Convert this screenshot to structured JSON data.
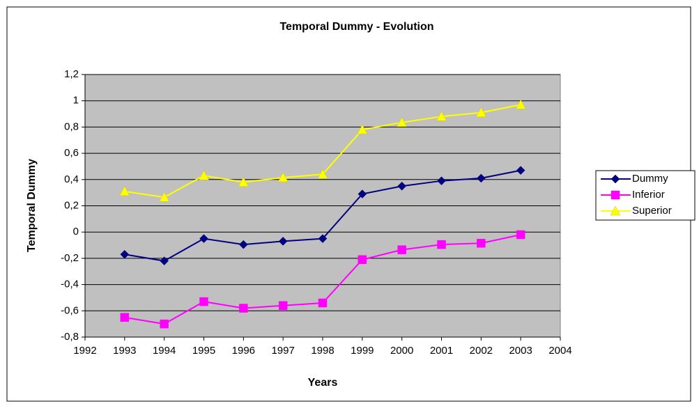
{
  "chart_data": {
    "type": "line",
    "title": "Temporal Dummy - Evolution",
    "xlabel": "Years",
    "ylabel": "Temporal Dummy",
    "x": [
      1993,
      1994,
      1995,
      1996,
      1997,
      1998,
      1999,
      2000,
      2001,
      2002,
      2003
    ],
    "series": [
      {
        "name": "Dummy",
        "color": "#000080",
        "marker": "diamond",
        "values": [
          -0.17,
          -0.22,
          -0.05,
          -0.095,
          -0.07,
          -0.05,
          0.29,
          0.35,
          0.39,
          0.41,
          0.47
        ]
      },
      {
        "name": "Inferior",
        "color": "#ff00ff",
        "marker": "square",
        "values": [
          -0.65,
          -0.7,
          -0.53,
          -0.58,
          -0.56,
          -0.54,
          -0.21,
          -0.135,
          -0.095,
          -0.085,
          -0.02
        ]
      },
      {
        "name": "Superior",
        "color": "#ffff00",
        "marker": "triangle",
        "values": [
          0.31,
          0.265,
          0.43,
          0.38,
          0.415,
          0.44,
          0.78,
          0.835,
          0.88,
          0.91,
          0.97
        ]
      }
    ],
    "xlim": [
      1992,
      2004
    ],
    "xticks": [
      1992,
      1993,
      1994,
      1995,
      1996,
      1997,
      1998,
      1999,
      2000,
      2001,
      2002,
      2003,
      2004
    ],
    "ylim": [
      -0.8,
      1.2
    ],
    "yticks": [
      {
        "value": -0.8,
        "label": "-0,8"
      },
      {
        "value": -0.6,
        "label": "-0,6"
      },
      {
        "value": -0.4,
        "label": "-0,4"
      },
      {
        "value": -0.2,
        "label": "-0,2"
      },
      0,
      {
        "value": 0.2,
        "label": "0,2"
      },
      {
        "value": 0.4,
        "label": "0,4"
      },
      {
        "value": 0.6,
        "label": "0,6"
      },
      {
        "value": 0.8,
        "label": "0,8"
      },
      1,
      {
        "value": 1.2,
        "label": "1,2"
      }
    ],
    "grid": true,
    "plot_background": "#c0c0c0",
    "legend": "right"
  }
}
